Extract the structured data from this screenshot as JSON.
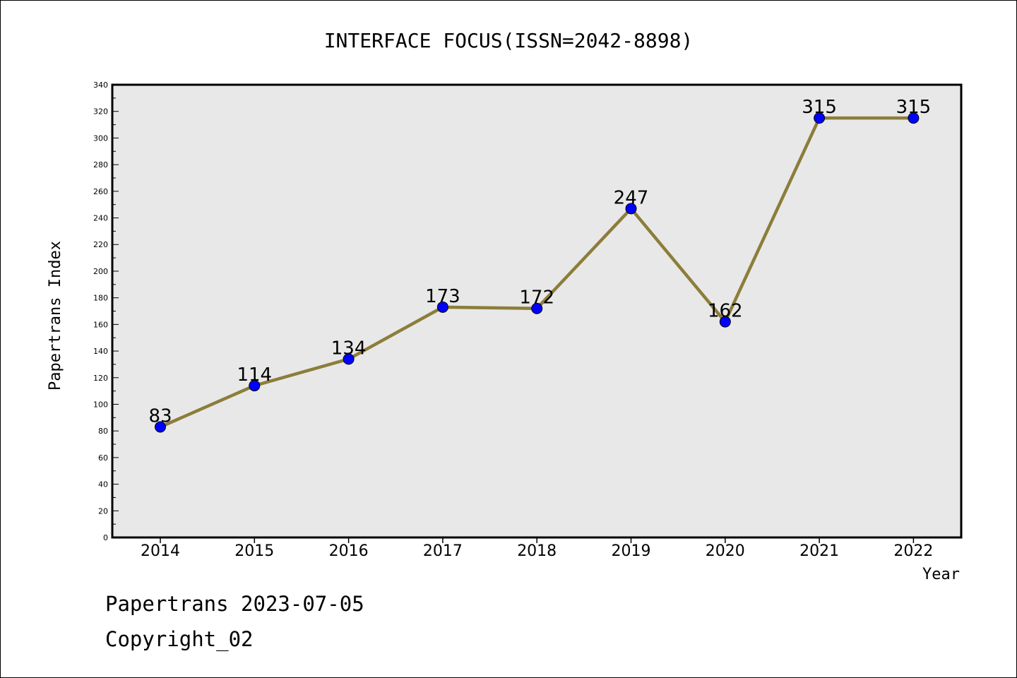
{
  "footer": {
    "line1": "Papertrans 2023-07-05",
    "line2": "Copyright_02"
  },
  "chart_data": {
    "type": "line",
    "title": "INTERFACE FOCUS(ISSN=2042-8898)",
    "xlabel": "Year",
    "ylabel": "Papertrans Index",
    "categories": [
      "2014",
      "2015",
      "2016",
      "2017",
      "2018",
      "2019",
      "2020",
      "2021",
      "2022"
    ],
    "series": [
      {
        "values": [
          83,
          114,
          134,
          173,
          172,
          247,
          162,
          315,
          315
        ]
      }
    ],
    "ylim": [
      0,
      340
    ],
    "yticks": [
      0,
      20,
      40,
      60,
      80,
      100,
      120,
      140,
      160,
      180,
      200,
      220,
      240,
      260,
      280,
      300,
      320,
      340
    ],
    "grid": false,
    "line_color": "#8c7d3a",
    "marker_color": "#0000ff",
    "plot_background": "#e8e8e8",
    "data_labels": true
  }
}
